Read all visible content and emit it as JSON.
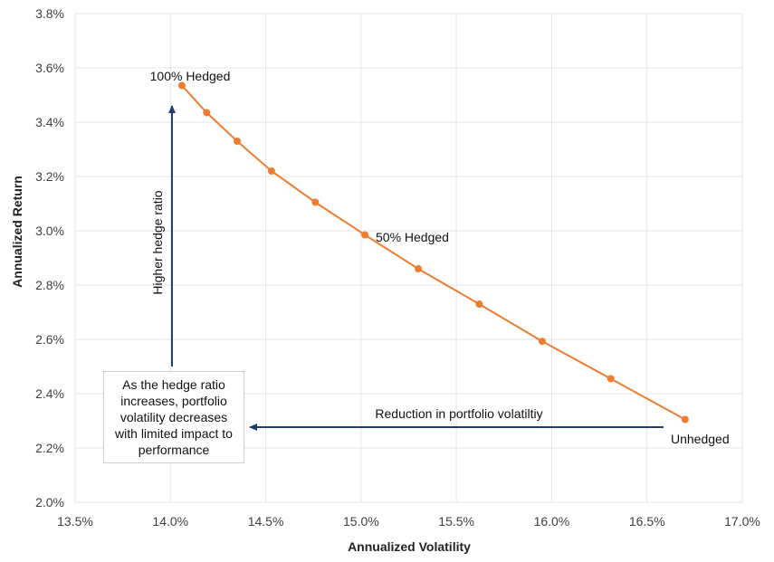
{
  "chart_data": {
    "type": "line",
    "xlabel": "Annualized Volatility",
    "ylabel": "Annualized Return",
    "xlim": [
      13.5,
      17.0
    ],
    "ylim": [
      2.0,
      3.8
    ],
    "x_ticks": [
      "13.5%",
      "14.0%",
      "14.5%",
      "15.0%",
      "15.5%",
      "16.0%",
      "16.5%",
      "17.0%"
    ],
    "y_ticks": [
      "2.0%",
      "2.2%",
      "2.4%",
      "2.6%",
      "2.8%",
      "3.0%",
      "3.2%",
      "3.4%",
      "3.6%",
      "3.8%"
    ],
    "grid": true,
    "series": [
      {
        "color": "#ED7D31",
        "points": [
          {
            "x": 14.06,
            "y": 3.535
          },
          {
            "x": 14.19,
            "y": 3.435
          },
          {
            "x": 14.35,
            "y": 3.33
          },
          {
            "x": 14.53,
            "y": 3.22
          },
          {
            "x": 14.76,
            "y": 3.105
          },
          {
            "x": 15.02,
            "y": 2.985
          },
          {
            "x": 15.3,
            "y": 2.86
          },
          {
            "x": 15.62,
            "y": 2.73
          },
          {
            "x": 15.95,
            "y": 2.593
          },
          {
            "x": 16.31,
            "y": 2.455
          },
          {
            "x": 16.7,
            "y": 2.305
          }
        ]
      }
    ],
    "point_labels": {
      "first": "100% Hedged",
      "middle": "50% Hedged",
      "last": "Unhedged"
    },
    "annotations": {
      "vertical_arrow_label": "Higher hedge ratio",
      "horizontal_arrow_label": "Reduction in portfolio volatiltiy",
      "callout_text": "As the hedge ratio increases, portfolio volatility decreases with limited impact to performance",
      "arrow_color": "#1F3F73"
    }
  }
}
